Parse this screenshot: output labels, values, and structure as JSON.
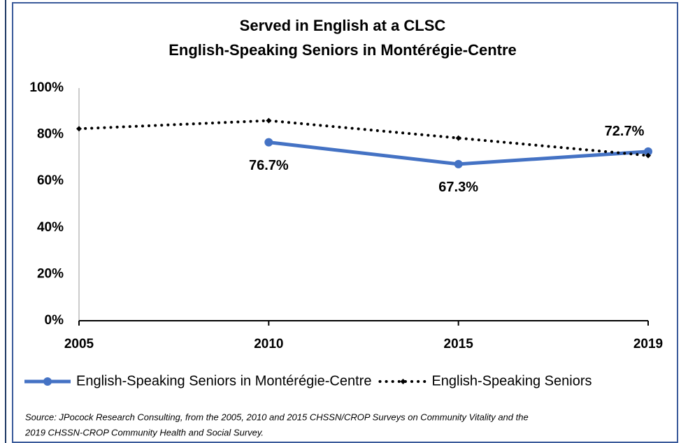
{
  "chart_data": {
    "type": "line",
    "title": [
      "Served in English at a CLSC",
      "English-Speaking Seniors in Montérégie-Centre"
    ],
    "categories": [
      "2005",
      "2010",
      "2015",
      "2019"
    ],
    "series": [
      {
        "name": "English-Speaking Seniors in Montérégie-Centre",
        "color": "#4472c4",
        "style": "solid",
        "values": [
          null,
          76.7,
          67.3,
          72.7
        ],
        "value_labels": [
          null,
          "76.7%",
          "67.3%",
          "72.7%"
        ]
      },
      {
        "name": "English-Speaking Seniors",
        "color": "#000000",
        "style": "dotted",
        "values": [
          82.5,
          86,
          78.5,
          71
        ]
      }
    ],
    "ylim": [
      0,
      100
    ],
    "yticks": [
      {
        "value": 0,
        "label": "0%"
      },
      {
        "value": 20,
        "label": "20%"
      },
      {
        "value": 40,
        "label": "40%"
      },
      {
        "value": 60,
        "label": "60%"
      },
      {
        "value": 80,
        "label": "80%"
      },
      {
        "value": 100,
        "label": "100%"
      }
    ],
    "legend": "bottom",
    "source": [
      "Source: JPocock Research Consulting, from the 2005, 2010  and 2015  CHSSN/CROP Surveys on Community Vitality and the",
      "2019  CHSSN-CROP Community Health and Social Survey."
    ]
  }
}
